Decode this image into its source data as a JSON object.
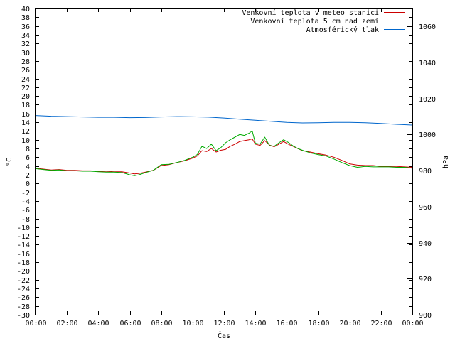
{
  "chart_data": {
    "type": "line",
    "title": "",
    "xlabel": "Čas",
    "ylabel_left": "°C",
    "ylabel_right": "hPa",
    "grid": false,
    "legend_position": "top-right",
    "x_ticks": [
      "00:00",
      "02:00",
      "04:00",
      "06:00",
      "08:00",
      "10:00",
      "12:00",
      "14:00",
      "16:00",
      "18:00",
      "20:00",
      "22:00",
      "00:00"
    ],
    "x_range_hours": [
      0,
      24
    ],
    "ylim_left": [
      -30,
      40
    ],
    "ylim_right": [
      900,
      1070
    ],
    "y_ticks_left": [
      40,
      38,
      36,
      34,
      32,
      30,
      28,
      26,
      24,
      22,
      20,
      18,
      16,
      14,
      12,
      10,
      8,
      6,
      4,
      2,
      0,
      -2,
      -4,
      -6,
      -8,
      -10,
      -12,
      -14,
      -16,
      -18,
      -20,
      -22,
      -24,
      -26,
      -28,
      -30
    ],
    "y_ticks_right": [
      1060,
      1040,
      1020,
      1000,
      980,
      960,
      940,
      920,
      900
    ],
    "series": [
      {
        "name": "Venkovní teplota v meteo stanici",
        "axis": "left",
        "color": "#cc0000",
        "x": [
          0,
          0.5,
          1,
          1.5,
          2,
          2.5,
          3,
          3.5,
          4,
          4.5,
          5,
          5.5,
          6,
          6.3,
          6.6,
          7,
          7.5,
          8,
          8.5,
          9,
          9.5,
          10,
          10.3,
          10.6,
          10.9,
          11.2,
          11.5,
          11.8,
          12.1,
          12.4,
          12.7,
          13,
          13.3,
          13.6,
          13.8,
          14,
          14.3,
          14.6,
          14.9,
          15.2,
          15.5,
          15.8,
          16.1,
          16.4,
          16.7,
          17,
          17.5,
          18,
          18.5,
          19,
          19.5,
          20,
          20.5,
          21,
          21.5,
          22,
          22.5,
          23,
          23.5,
          24
        ],
        "y": [
          3.5,
          3.3,
          3.1,
          3.2,
          3.0,
          3.0,
          2.9,
          2.9,
          2.8,
          2.8,
          2.7,
          2.7,
          2.4,
          2.2,
          2.3,
          2.6,
          3.0,
          4.1,
          4.3,
          4.8,
          5.2,
          5.8,
          6.3,
          7.5,
          7.3,
          8.0,
          7.2,
          7.6,
          7.8,
          8.5,
          9.0,
          9.6,
          9.8,
          10.0,
          10.2,
          9.0,
          8.7,
          9.8,
          8.8,
          8.4,
          9.0,
          9.6,
          9.0,
          8.5,
          8.0,
          7.5,
          7.2,
          6.8,
          6.5,
          6.0,
          5.3,
          4.5,
          4.2,
          4.1,
          4.1,
          3.9,
          3.9,
          3.9,
          3.8,
          3.7
        ]
      },
      {
        "name": "Venkovní teplota 5 cm nad zemí",
        "axis": "left",
        "color": "#00aa00",
        "x": [
          0,
          0.5,
          1,
          1.5,
          2,
          2.5,
          3,
          3.5,
          4,
          4.5,
          5,
          5.5,
          6,
          6.3,
          6.6,
          7,
          7.5,
          8,
          8.5,
          9,
          9.5,
          10,
          10.3,
          10.6,
          10.9,
          11.2,
          11.5,
          11.8,
          12.1,
          12.4,
          12.7,
          13,
          13.3,
          13.6,
          13.8,
          14,
          14.3,
          14.6,
          14.9,
          15.2,
          15.5,
          15.8,
          16.1,
          16.4,
          16.7,
          17,
          17.5,
          18,
          18.5,
          19,
          19.5,
          20,
          20.5,
          21,
          21.5,
          22,
          22.5,
          23,
          23.5,
          24
        ],
        "y": [
          3.4,
          3.2,
          3.0,
          3.1,
          2.9,
          2.9,
          2.8,
          2.8,
          2.7,
          2.6,
          2.6,
          2.5,
          2.0,
          1.8,
          2.0,
          2.5,
          3.0,
          4.3,
          4.4,
          4.8,
          5.3,
          6.0,
          6.6,
          8.5,
          8.0,
          9.0,
          7.5,
          8.2,
          9.3,
          10.0,
          10.6,
          11.2,
          11.0,
          11.5,
          12.0,
          9.2,
          9.0,
          10.6,
          8.7,
          8.5,
          9.3,
          10.0,
          9.4,
          8.6,
          8.0,
          7.6,
          7.0,
          6.6,
          6.3,
          5.6,
          4.8,
          4.1,
          3.7,
          3.9,
          3.8,
          3.8,
          3.8,
          3.7,
          3.7,
          3.5
        ]
      },
      {
        "name": "Atmosférický tlak",
        "axis": "right",
        "color": "#0066cc",
        "x": [
          0,
          1,
          2,
          3,
          4,
          5,
          6,
          7,
          8,
          9,
          10,
          11,
          12,
          13,
          14,
          15,
          16,
          17,
          18,
          19,
          20,
          21,
          22,
          23,
          24
        ],
        "y": [
          1010.6,
          1010.2,
          1010.0,
          1009.8,
          1009.6,
          1009.6,
          1009.4,
          1009.5,
          1009.8,
          1010.0,
          1009.9,
          1009.7,
          1009.2,
          1008.6,
          1008.0,
          1007.4,
          1006.8,
          1006.5,
          1006.6,
          1006.8,
          1006.8,
          1006.6,
          1006.2,
          1005.7,
          1005.3
        ]
      }
    ]
  }
}
